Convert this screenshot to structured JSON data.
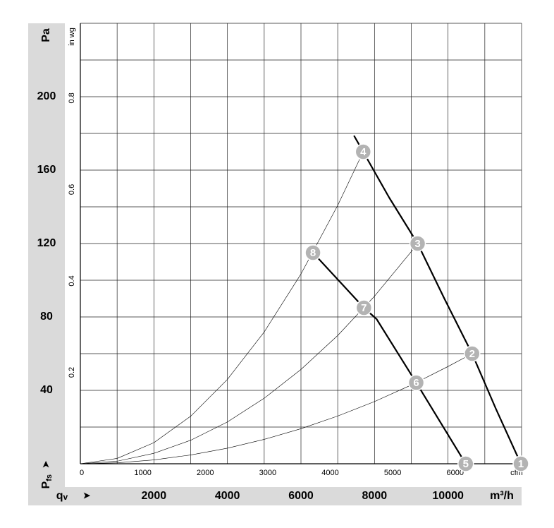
{
  "chart_data": {
    "type": "line",
    "y_label": "Pa",
    "y2_label": "in wg",
    "x_label": "m³/h",
    "x2_label": "cfm",
    "y_axis_title": {
      "text": "P",
      "subscript": "fs"
    },
    "x_axis_title": {
      "text": "q",
      "subscript": "v"
    },
    "xlim": [
      0,
      12000
    ],
    "xticks": [
      2000,
      4000,
      6000,
      8000,
      10000
    ],
    "x2lim": [
      0,
      7063
    ],
    "x2ticks": [
      0,
      1000,
      2000,
      3000,
      4000,
      5000,
      6000
    ],
    "ylim": [
      0,
      240
    ],
    "yticks": [
      40,
      80,
      120,
      160,
      200
    ],
    "y2lim": [
      0,
      0.9635
    ],
    "y2ticks": [
      0.2,
      0.4,
      0.6,
      0.8
    ],
    "xgrid": [
      0,
      1000,
      2000,
      3000,
      4000,
      5000,
      6000,
      7000,
      8000,
      9000,
      10000,
      11000,
      12000
    ],
    "ygrid": [
      0,
      20,
      40,
      60,
      80,
      100,
      120,
      140,
      160,
      180,
      200,
      220,
      240
    ],
    "series": [
      {
        "color": "#000000",
        "line_width": 2.2,
        "x": [
          7442,
          7692,
          8400,
          9173,
          9900,
          10654,
          11300,
          11981
        ],
        "values": [
          178.8,
          170,
          145,
          120,
          90,
          60,
          30,
          0
        ]
      },
      {
        "color": "#000000",
        "line_width": 2.2,
        "x": [
          6327,
          7712,
          8058,
          9135,
          10481
        ],
        "values": [
          115,
          85,
          78.8,
          44.2,
          0
        ]
      },
      {
        "color": "#000000",
        "line_width": 0.6,
        "x": [
          0,
          1000,
          2000,
          3000,
          4000,
          5000,
          6000,
          7000,
          7692
        ],
        "values": [
          0,
          2.9,
          11.5,
          25.9,
          46,
          71.8,
          103.4,
          140.8,
          170
        ]
      },
      {
        "color": "#000000",
        "line_width": 0.6,
        "x": [
          0,
          1000,
          2000,
          3000,
          4000,
          5000,
          6000,
          7000,
          8000,
          9000,
          9173
        ],
        "values": [
          0,
          1.4,
          5.7,
          12.8,
          22.8,
          35.7,
          51.4,
          69.9,
          91.3,
          115.6,
          120
        ]
      },
      {
        "color": "#000000",
        "line_width": 0.6,
        "x": [
          0,
          1000,
          2000,
          3000,
          4000,
          5000,
          6000,
          7000,
          8000,
          9000,
          10000,
          10654
        ],
        "values": [
          0,
          0.5,
          2.1,
          4.8,
          8.5,
          13.3,
          19.1,
          26,
          33.9,
          42.9,
          53,
          60
        ]
      }
    ],
    "points": [
      {
        "label": "1",
        "x": 11981,
        "y": 0
      },
      {
        "label": "2",
        "x": 10654,
        "y": 60
      },
      {
        "label": "3",
        "x": 9173,
        "y": 120
      },
      {
        "label": "4",
        "x": 7692,
        "y": 170
      },
      {
        "label": "5",
        "x": 10481,
        "y": 0
      },
      {
        "label": "6",
        "x": 9135,
        "y": 44.2
      },
      {
        "label": "7",
        "x": 7712,
        "y": 85
      },
      {
        "label": "8",
        "x": 6327,
        "y": 115
      }
    ],
    "point_color": "#b3b3b3"
  }
}
